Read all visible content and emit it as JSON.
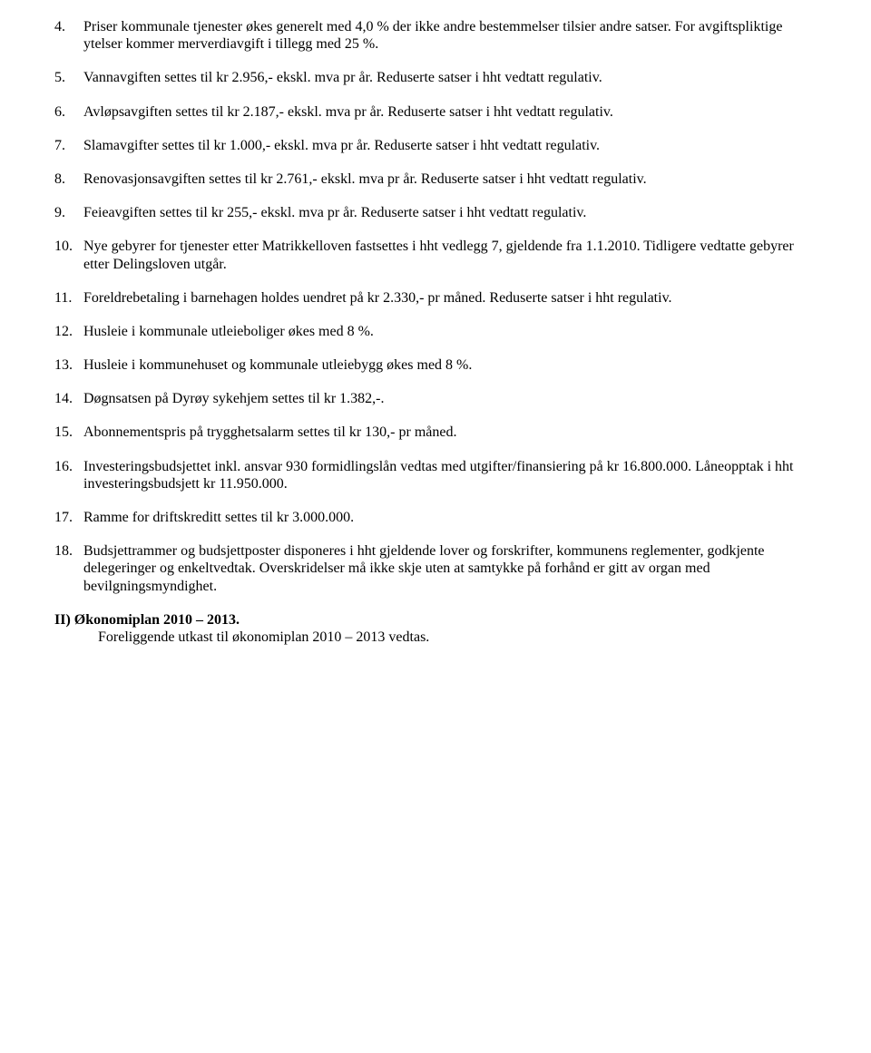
{
  "items": [
    {
      "number": "4.",
      "text": "Priser kommunale tjenester økes generelt med 4,0 % der ikke andre bestemmelser tilsier andre satser. For avgiftspliktige ytelser kommer merverdiavgift i tillegg med 25 %."
    },
    {
      "number": "5.",
      "text": "Vannavgiften settes til kr 2.956,- ekskl. mva pr år. Reduserte satser i hht vedtatt regulativ."
    },
    {
      "number": "6.",
      "text": "Avløpsavgiften settes til kr 2.187,- ekskl. mva pr år. Reduserte satser i hht vedtatt regulativ."
    },
    {
      "number": "7.",
      "text": "Slamavgifter settes til kr 1.000,- ekskl. mva pr år. Reduserte satser i hht vedtatt regulativ."
    },
    {
      "number": "8.",
      "text": "Renovasjonsavgiften settes til kr 2.761,- ekskl. mva pr år. Reduserte satser i hht vedtatt regulativ."
    },
    {
      "number": "9.",
      "text": "Feieavgiften settes til kr 255,- ekskl. mva pr år. Reduserte satser i hht vedtatt regulativ."
    },
    {
      "number": "10.",
      "text": "Nye gebyrer for tjenester etter Matrikkelloven fastsettes i hht vedlegg 7, gjeldende fra 1.1.2010. Tidligere vedtatte gebyrer etter Delingsloven utgår."
    },
    {
      "number": "11.",
      "text": "Foreldrebetaling i barnehagen holdes uendret på kr 2.330,- pr måned. Reduserte satser i hht regulativ."
    },
    {
      "number": "12.",
      "text": "Husleie i kommunale utleieboliger økes med 8 %."
    },
    {
      "number": "13.",
      "text": "Husleie i kommunehuset og kommunale utleiebygg økes med 8 %."
    },
    {
      "number": "14.",
      "text": "Døgnsatsen på Dyrøy sykehjem settes til kr 1.382,-."
    },
    {
      "number": "15.",
      "text": "Abonnementspris på trygghetsalarm settes til kr 130,- pr måned."
    },
    {
      "number": "16.",
      "text": "Investeringsbudsjettet inkl. ansvar 930 formidlingslån vedtas med utgifter/finansiering på kr 16.800.000. Låneopptak i hht investeringsbudsjett kr 11.950.000."
    },
    {
      "number": "17.",
      "text": "Ramme for driftskreditt settes til kr 3.000.000."
    },
    {
      "number": "18.",
      "text": "Budsjettrammer og budsjettposter disponeres i hht gjeldende lover og forskrifter, kommunens reglementer, godkjente delegeringer og enkeltvedtak. Overskridelser må ikke skje uten at samtykke på forhånd er gitt av organ med bevilgningsmyndighet."
    }
  ],
  "section2": {
    "heading": "II) Økonomiplan 2010 – 2013.",
    "subtext": "Foreliggende utkast til økonomiplan 2010 – 2013 vedtas."
  }
}
